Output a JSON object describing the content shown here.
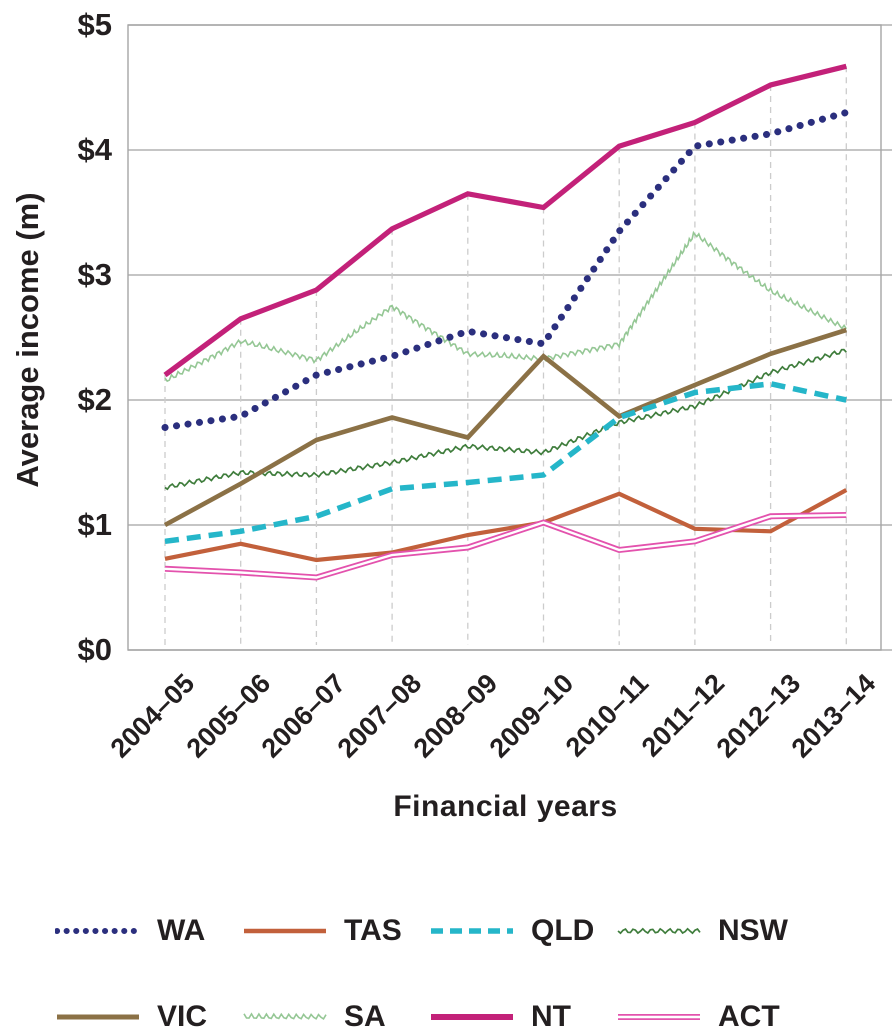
{
  "chart_data": {
    "type": "line",
    "title": "",
    "xlabel": "Financial years",
    "ylabel": "Average income (m)",
    "categories": [
      "2004–05",
      "2005–06",
      "2006–07",
      "2007–08",
      "2008–09",
      "2009–10",
      "2010–11",
      "2011–12",
      "2012–13",
      "2013–14"
    ],
    "y_tick_labels": [
      "$0",
      "$1",
      "$2",
      "$3",
      "$4",
      "$5"
    ],
    "ylim": [
      0,
      5
    ],
    "grid": {
      "horizontal": "solid",
      "vertical": "dashed drop lines at each year"
    },
    "legend_position": "bottom",
    "series": [
      {
        "name": "WA",
        "style": "dotted",
        "color": "#2b2f7e",
        "values": [
          1.78,
          1.87,
          2.2,
          2.35,
          2.55,
          2.45,
          3.35,
          4.03,
          4.13,
          4.3
        ]
      },
      {
        "name": "TAS",
        "style": "solid",
        "color": "#c2603b",
        "values": [
          0.73,
          0.85,
          0.72,
          0.78,
          0.92,
          1.02,
          1.25,
          0.97,
          0.95,
          1.28
        ]
      },
      {
        "name": "QLD",
        "style": "dashed",
        "color": "#25b6c9",
        "values": [
          0.87,
          0.95,
          1.07,
          1.29,
          1.34,
          1.4,
          1.86,
          2.06,
          2.13,
          2.0
        ]
      },
      {
        "name": "NSW",
        "style": "wavy",
        "color": "#3f7d3c",
        "values": [
          1.3,
          1.42,
          1.4,
          1.5,
          1.63,
          1.58,
          1.82,
          1.95,
          2.22,
          2.4
        ]
      },
      {
        "name": "VIC",
        "style": "solid-thick",
        "color": "#8b7146",
        "values": [
          1.0,
          1.33,
          1.68,
          1.86,
          1.7,
          2.35,
          1.87,
          2.12,
          2.37,
          2.56
        ]
      },
      {
        "name": "SA",
        "style": "zigzag",
        "color": "#95c795",
        "values": [
          2.15,
          2.47,
          2.32,
          2.75,
          2.37,
          2.33,
          2.45,
          3.33,
          2.87,
          2.57
        ]
      },
      {
        "name": "NT",
        "style": "solid-heavy",
        "color": "#c32179",
        "values": [
          2.2,
          2.65,
          2.88,
          3.37,
          3.65,
          3.54,
          4.03,
          4.22,
          4.52,
          4.67
        ]
      },
      {
        "name": "ACT",
        "style": "double",
        "color": "#e352ad",
        "values": [
          0.65,
          0.62,
          0.58,
          0.76,
          0.82,
          1.02,
          0.8,
          0.87,
          1.07,
          1.08
        ]
      }
    ]
  },
  "axes": {
    "y_title": "Average income (m)",
    "x_title": "Financial years"
  },
  "legend": {
    "rows": [
      [
        "WA",
        "TAS",
        "QLD",
        "NSW"
      ],
      [
        "VIC",
        "SA",
        "NT",
        "ACT"
      ]
    ]
  },
  "style_colors": {
    "text": "#231f20",
    "gridline": "#b2b2b2",
    "plot_border": "#a6a6a6",
    "drop_line": "#cccccc",
    "background": "#ffffff"
  }
}
